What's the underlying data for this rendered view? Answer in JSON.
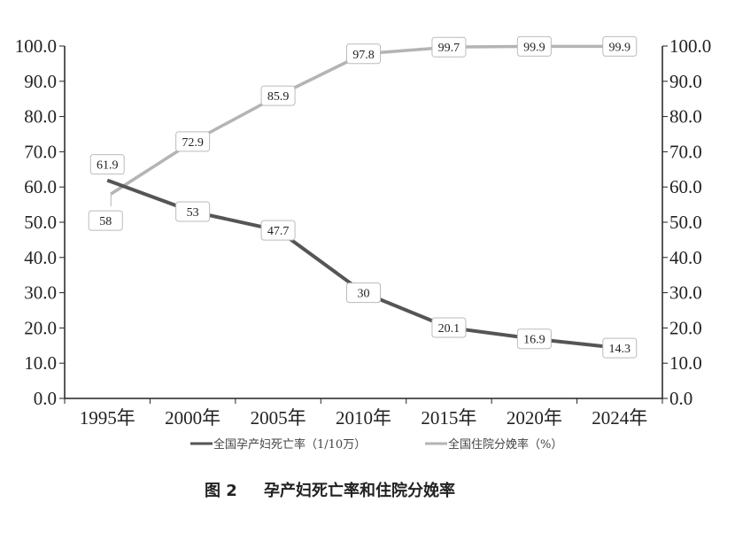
{
  "chart_data": {
    "type": "line",
    "categories": [
      "1995年",
      "2000年",
      "2005年",
      "2010年",
      "2015年",
      "2020年",
      "2024年"
    ],
    "series": [
      {
        "name": "全国孕产妇死亡率（1/10万）",
        "values": [
          61.9,
          53.0,
          47.7,
          30.0,
          20.1,
          16.9,
          14.3
        ],
        "color": "#555555"
      },
      {
        "name": "全国住院分娩率（%）",
        "values": [
          58.0,
          72.9,
          85.9,
          97.8,
          99.7,
          99.9,
          99.9
        ],
        "color": "#b4b4b4"
      }
    ],
    "ylim": [
      0,
      100
    ],
    "yticks": [
      "0.0",
      "10.0",
      "20.0",
      "30.0",
      "40.0",
      "50.0",
      "60.0",
      "70.0",
      "80.0",
      "90.0",
      "100.0"
    ],
    "y2ticks": [
      "0.0",
      "10.0",
      "20.0",
      "30.0",
      "40.0",
      "50.0",
      "60.0",
      "70.0",
      "80.0",
      "90.0",
      "100.0"
    ],
    "grid": false,
    "legend": "bottom",
    "caption_num": "图 2",
    "caption": "孕产妇死亡率和住院分娩率"
  }
}
